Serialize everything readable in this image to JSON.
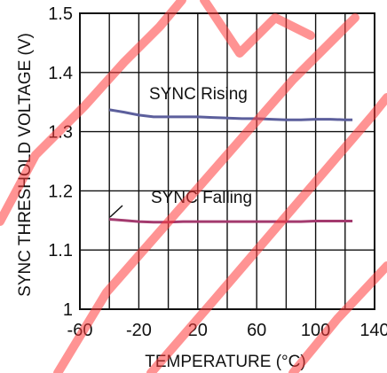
{
  "chart_data": {
    "type": "line",
    "xlabel": "TEMPERATURE (°C)",
    "ylabel": "SYNC THRESHOLD VOLTAGE (V)",
    "xlim": [
      -60,
      140
    ],
    "ylim": [
      1.0,
      1.5
    ],
    "xticks": [
      "-60",
      "-20",
      "20",
      "60",
      "100",
      "140"
    ],
    "yticks": [
      "1",
      "1.1",
      "1.2",
      "1.3",
      "1.4",
      "1.5"
    ],
    "grid": true,
    "series": [
      {
        "name": "SYNC Rising",
        "color": "#5c5f9c",
        "x": [
          -40,
          -30,
          -20,
          -10,
          0,
          10,
          20,
          30,
          40,
          50,
          60,
          70,
          80,
          90,
          100,
          110,
          120,
          125
        ],
        "y": [
          1.337,
          1.333,
          1.328,
          1.325,
          1.325,
          1.325,
          1.325,
          1.324,
          1.323,
          1.322,
          1.322,
          1.321,
          1.32,
          1.32,
          1.321,
          1.321,
          1.32,
          1.32
        ]
      },
      {
        "name": "SYNC Falling",
        "color": "#a33a6e",
        "x": [
          -40,
          -30,
          -20,
          -10,
          0,
          10,
          20,
          30,
          40,
          50,
          60,
          70,
          80,
          90,
          100,
          110,
          120,
          125
        ],
        "y": [
          1.152,
          1.15,
          1.148,
          1.147,
          1.147,
          1.148,
          1.148,
          1.148,
          1.148,
          1.148,
          1.148,
          1.148,
          1.148,
          1.148,
          1.149,
          1.149,
          1.149,
          1.149
        ]
      }
    ]
  }
}
